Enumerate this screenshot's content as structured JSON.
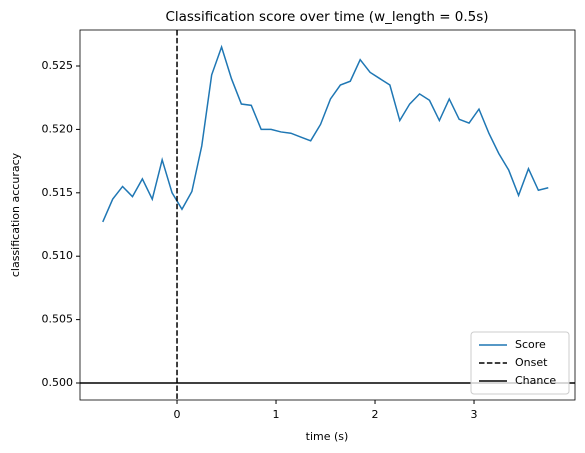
{
  "chart_data": {
    "type": "line",
    "title": "Classification score over time (w_length = 0.5s)",
    "xlabel": "time (s)",
    "ylabel": "classification accuracy",
    "x": [
      -0.75,
      -0.65,
      -0.55,
      -0.45,
      -0.35,
      -0.25,
      -0.15,
      -0.05,
      0.05,
      0.15,
      0.25,
      0.35,
      0.45,
      0.55,
      0.65,
      0.75,
      0.85,
      0.95,
      1.05,
      1.15,
      1.25,
      1.35,
      1.45,
      1.55,
      1.65,
      1.75,
      1.85,
      1.95,
      2.05,
      2.15,
      2.25,
      2.35,
      2.45,
      2.55,
      2.65,
      2.75,
      2.85,
      2.95,
      3.05,
      3.15,
      3.25,
      3.35,
      3.45,
      3.55,
      3.65,
      3.75
    ],
    "series": [
      {
        "name": "Score",
        "color": "#1f77b4",
        "values": [
          0.5127,
          0.5145,
          0.5155,
          0.5147,
          0.5161,
          0.5145,
          0.5176,
          0.515,
          0.5137,
          0.5151,
          0.5187,
          0.5243,
          0.5265,
          0.524,
          0.522,
          0.5219,
          0.52,
          0.52,
          0.5198,
          0.5197,
          0.5194,
          0.5191,
          0.5204,
          0.5224,
          0.5235,
          0.5238,
          0.5255,
          0.5245,
          0.524,
          0.5235,
          0.5207,
          0.522,
          0.5228,
          0.5223,
          0.5207,
          0.5224,
          0.5208,
          0.5205,
          0.5216,
          0.5197,
          0.5181,
          0.5168,
          0.5148,
          0.5169,
          0.5152,
          0.5154
        ]
      }
    ],
    "vlines": [
      {
        "name": "Onset",
        "x": 0,
        "color": "#000000",
        "dashed": true
      }
    ],
    "hlines": [
      {
        "name": "Chance",
        "y": 0.5,
        "color": "#000000",
        "dashed": false
      }
    ],
    "xlim": [
      -0.98,
      4.02
    ],
    "xticks": [
      0,
      1,
      2,
      3
    ],
    "ylim": [
      0.49866,
      0.52784
    ],
    "yticks": [
      {
        "value": 0.5,
        "label": "0.500"
      },
      {
        "value": 0.505,
        "label": "0.505"
      },
      {
        "value": 0.51,
        "label": "0.510"
      },
      {
        "value": 0.515,
        "label": "0.515"
      },
      {
        "value": 0.52,
        "label": "0.520"
      },
      {
        "value": 0.525,
        "label": "0.525"
      }
    ],
    "legend": "lower right"
  }
}
